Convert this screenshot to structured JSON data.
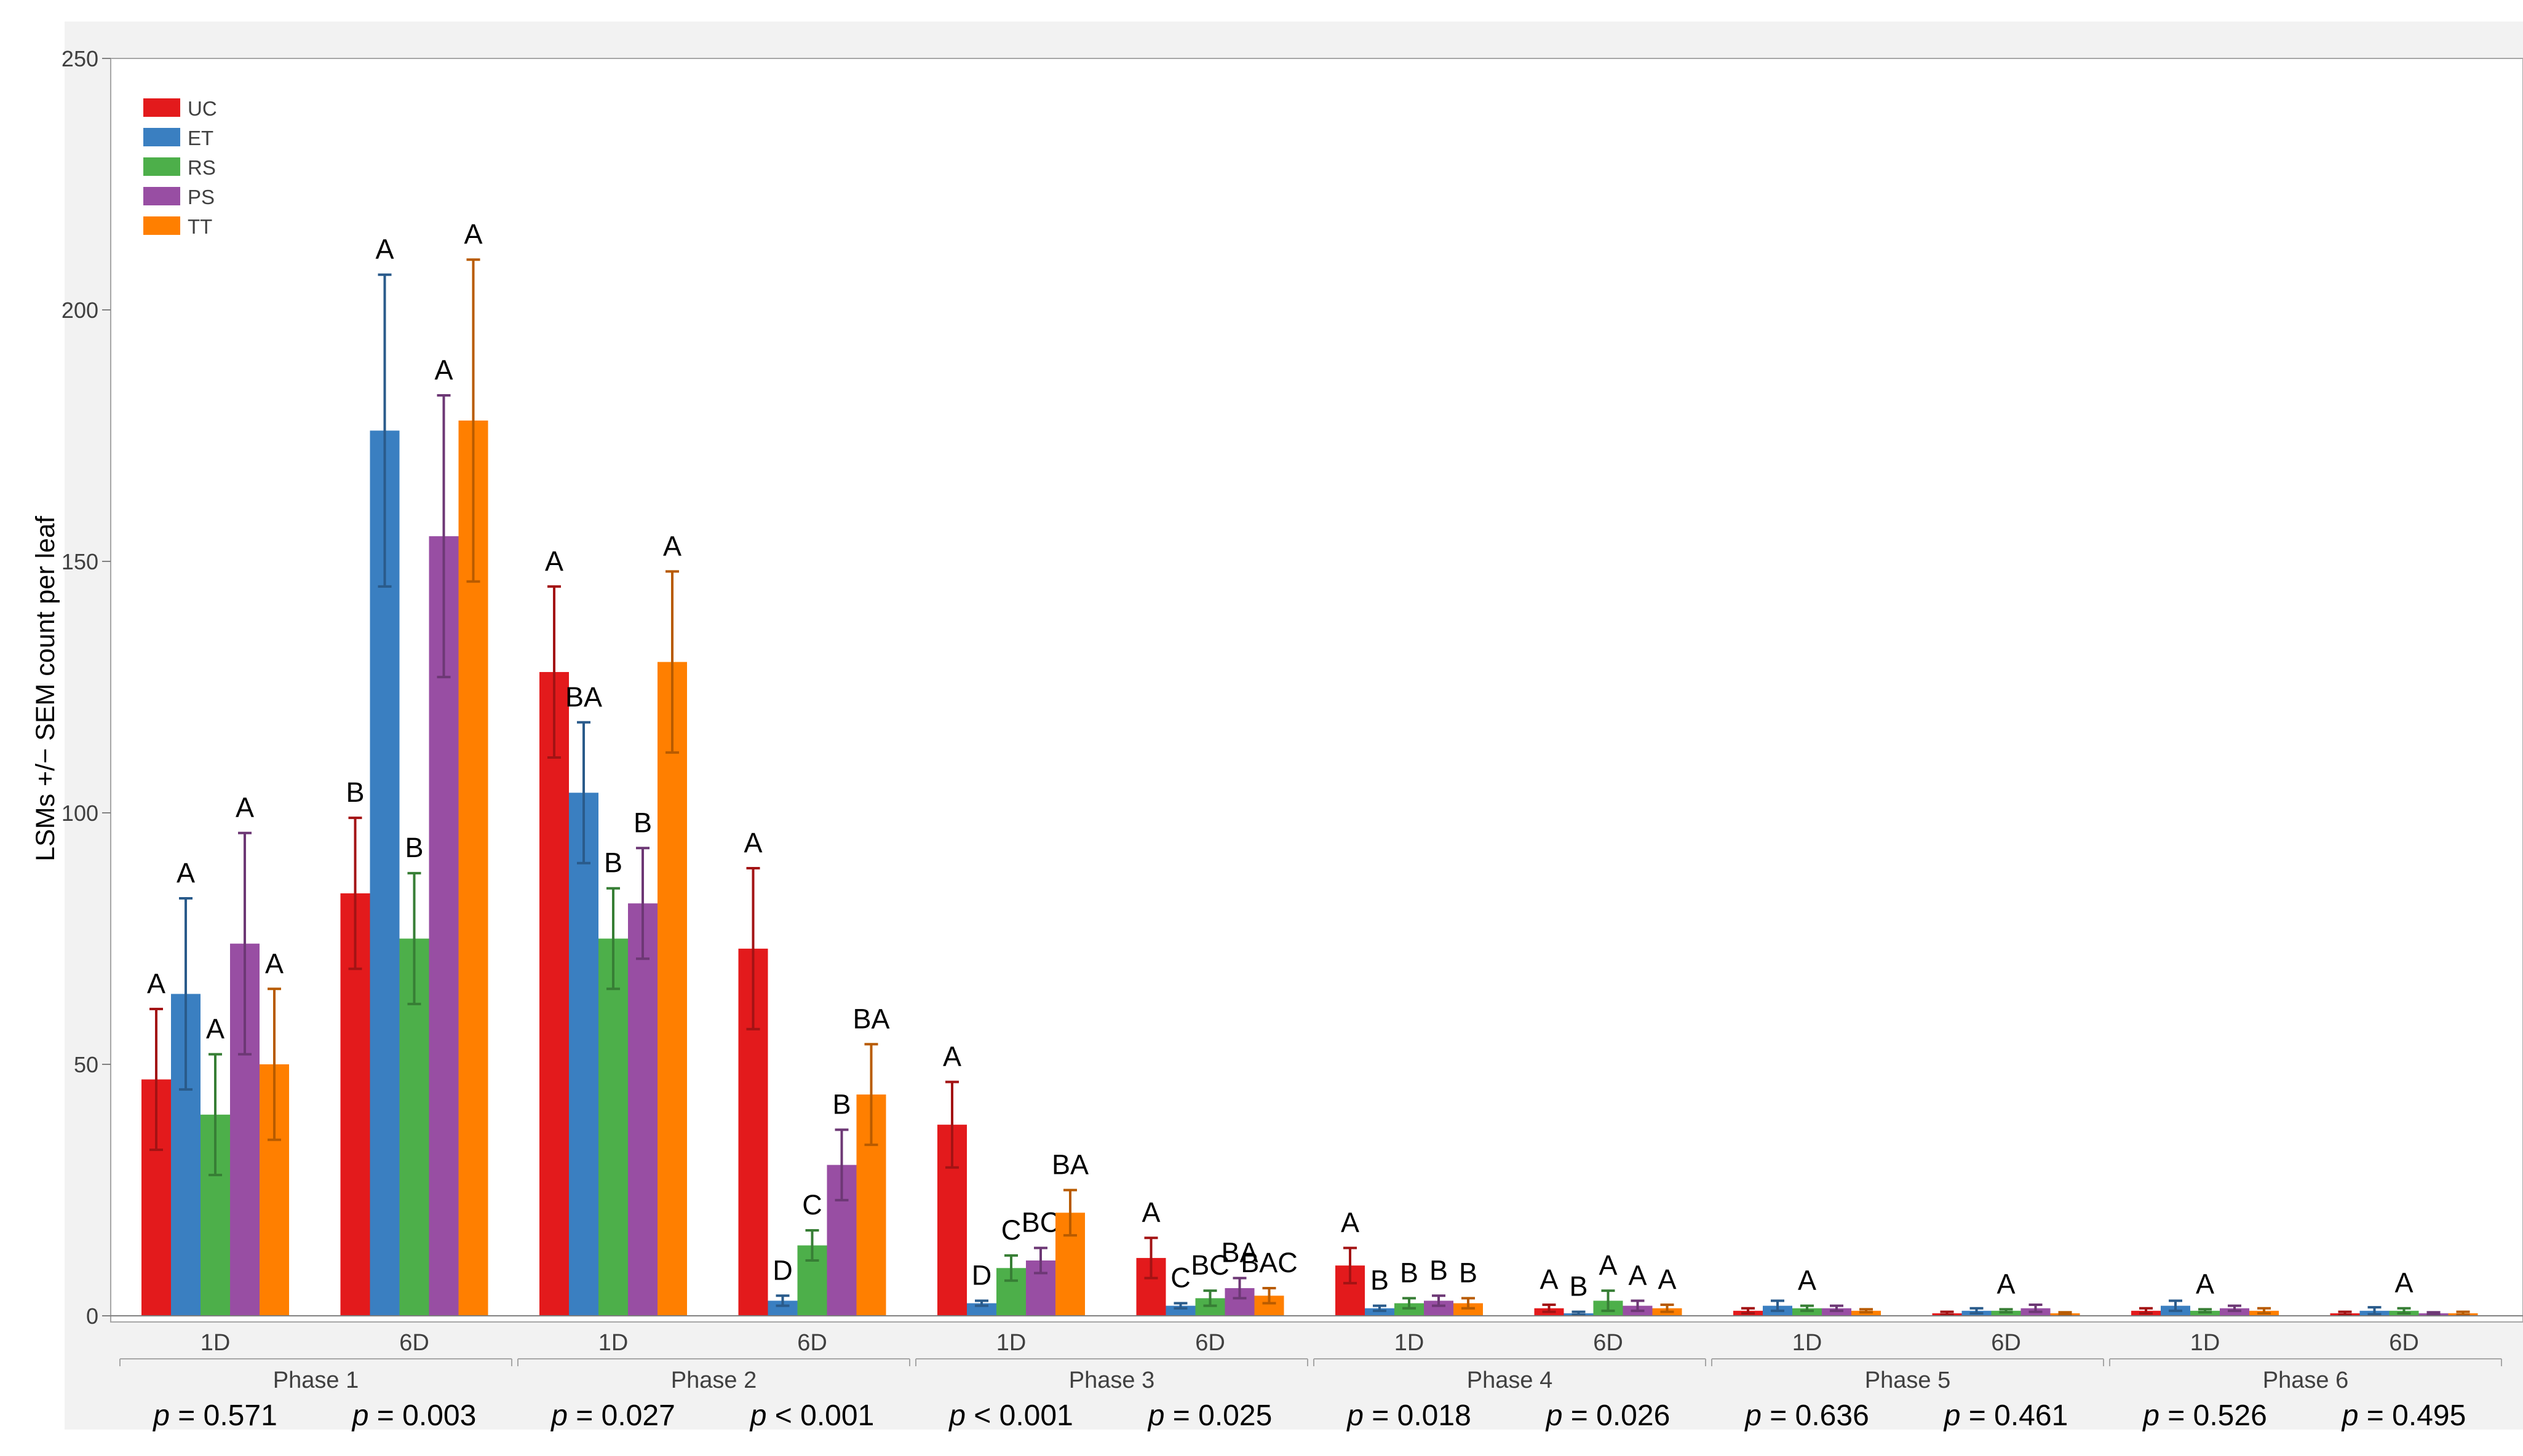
{
  "chart_data": {
    "type": "bar",
    "title": "",
    "ylabel": "LSMs +/− SEM count per leaf",
    "ylim": [
      0,
      250
    ],
    "yticks": [
      0,
      50,
      100,
      150,
      200,
      250
    ],
    "grid": false,
    "legend_position": "top-left",
    "series": [
      {
        "name": "UC",
        "color": "#e31a1c"
      },
      {
        "name": "ET",
        "color": "#3a7fc1"
      },
      {
        "name": "RS",
        "color": "#4daf4a"
      },
      {
        "name": "PS",
        "color": "#984ea3"
      },
      {
        "name": "TT",
        "color": "#ff7f00"
      }
    ],
    "phases": [
      {
        "name": "Phase 1",
        "groups": [
          {
            "label": "1D",
            "p": "= 0.571",
            "values": [
              47,
              64,
              40,
              74,
              50
            ],
            "sem": [
              14,
              19,
              12,
              22,
              15
            ],
            "letters": [
              "A",
              "A",
              "A",
              "A",
              "A"
            ]
          },
          {
            "label": "6D",
            "p": "= 0.003",
            "values": [
              84,
              176,
              75,
              155,
              178
            ],
            "sem": [
              15,
              31,
              13,
              28,
              32
            ],
            "letters": [
              "B",
              "A",
              "B",
              "A",
              "A"
            ]
          }
        ]
      },
      {
        "name": "Phase 2",
        "groups": [
          {
            "label": "1D",
            "p": "= 0.027",
            "values": [
              128,
              104,
              75,
              82,
              130
            ],
            "sem": [
              17,
              14,
              10,
              11,
              18
            ],
            "letters": [
              "A",
              "BA",
              "B",
              "B",
              "A"
            ]
          },
          {
            "label": "6D",
            "p": "< 0.001",
            "values": [
              73,
              3,
              14,
              30,
              44
            ],
            "sem": [
              16,
              1,
              3,
              7,
              10
            ],
            "letters": [
              "A",
              "D",
              "C",
              "B",
              "BA"
            ]
          }
        ]
      },
      {
        "name": "Phase 3",
        "groups": [
          {
            "label": "1D",
            "p": "< 0.001",
            "values": [
              38,
              2.5,
              9.5,
              11,
              20.5
            ],
            "sem": [
              8.5,
              0.5,
              2.5,
              2.5,
              4.5
            ],
            "letters": [
              "A",
              "D",
              "C",
              "BC",
              "BA"
            ]
          },
          {
            "label": "6D",
            "p": "= 0.025",
            "values": [
              11.5,
              2,
              3.5,
              5.5,
              4
            ],
            "sem": [
              4,
              0.5,
              1.5,
              2,
              1.5
            ],
            "letters": [
              "A",
              "C",
              "BC",
              "BA",
              "BAC"
            ]
          }
        ]
      },
      {
        "name": "Phase 4",
        "groups": [
          {
            "label": "1D",
            "p": "= 0.018",
            "values": [
              10,
              1.5,
              2.5,
              3,
              2.5
            ],
            "sem": [
              3.5,
              0.5,
              1,
              1,
              1
            ],
            "letters": [
              "A",
              "B",
              "B",
              "B",
              "B"
            ]
          },
          {
            "label": "6D",
            "p": "= 0.026",
            "values": [
              1.5,
              0.5,
              3,
              2,
              1.5
            ],
            "sem": [
              0.7,
              0.3,
              2,
              1,
              0.7
            ],
            "letters": [
              "A",
              "B",
              "A",
              "A",
              "A"
            ]
          }
        ]
      },
      {
        "name": "Phase 5",
        "groups": [
          {
            "label": "1D",
            "p": "= 0.636",
            "values": [
              1,
              2,
              1.5,
              1.5,
              1
            ],
            "sem": [
              0.5,
              1,
              0.5,
              0.5,
              0.3
            ],
            "letters": [
              "",
              "",
              "A",
              "",
              ""
            ]
          },
          {
            "label": "6D",
            "p": "= 0.461",
            "values": [
              0.5,
              1,
              1,
              1.5,
              0.5
            ],
            "sem": [
              0.3,
              0.5,
              0.3,
              0.7,
              0.2
            ],
            "letters": [
              "",
              "",
              "A",
              "",
              ""
            ]
          }
        ]
      },
      {
        "name": "Phase 6",
        "groups": [
          {
            "label": "1D",
            "p": "= 0.526",
            "values": [
              1,
              2,
              1,
              1.5,
              1
            ],
            "sem": [
              0.5,
              1,
              0.3,
              0.5,
              0.5
            ],
            "letters": [
              "",
              "",
              "A",
              "",
              ""
            ]
          },
          {
            "label": "6D",
            "p": "= 0.495",
            "values": [
              0.5,
              1,
              1,
              0.5,
              0.5
            ],
            "sem": [
              0.3,
              0.7,
              0.5,
              0.2,
              0.3
            ],
            "letters": [
              "",
              "",
              "A",
              "",
              ""
            ]
          }
        ]
      }
    ]
  }
}
